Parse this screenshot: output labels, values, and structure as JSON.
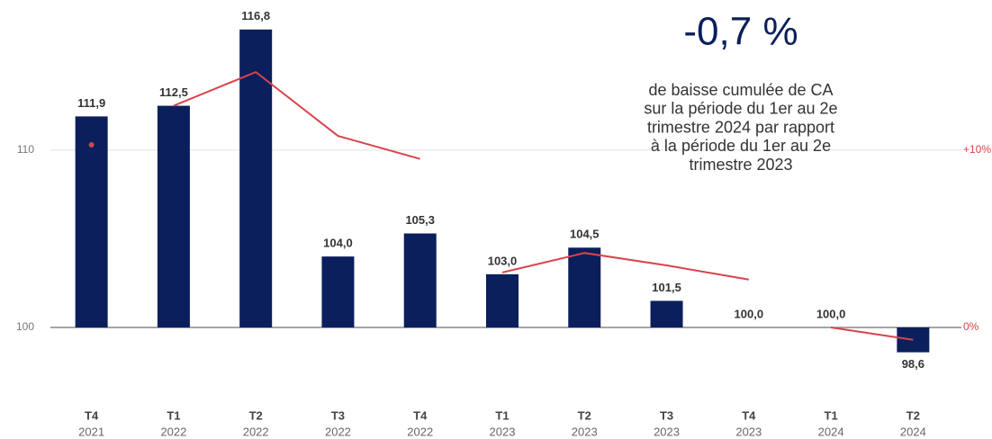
{
  "chart_data": {
    "type": "bar",
    "categories": [
      [
        "T4",
        "2021"
      ],
      [
        "T1",
        "2022"
      ],
      [
        "T2",
        "2022"
      ],
      [
        "T3",
        "2022"
      ],
      [
        "T4",
        "2022"
      ],
      [
        "T1",
        "2023"
      ],
      [
        "T2",
        "2023"
      ],
      [
        "T3",
        "2023"
      ],
      [
        "T4",
        "2023"
      ],
      [
        "T1",
        "2024"
      ],
      [
        "T2",
        "2024"
      ]
    ],
    "values": [
      111.9,
      112.5,
      116.8,
      104.0,
      105.3,
      103.0,
      104.5,
      101.5,
      100.0,
      100.0,
      98.6
    ],
    "value_labels": [
      "111,9",
      "112,5",
      "116,8",
      "104,0",
      "105,3",
      "103,0",
      "104,5",
      "101,5",
      "100,0",
      "100,0",
      "98,6"
    ],
    "color": "#0a1f5c",
    "baseline": 100,
    "ylim": [
      96.5,
      117.5
    ],
    "yticks": [
      100,
      110
    ],
    "y2lim": [
      -3.5,
      17.5
    ],
    "y2ticks": [
      {
        "value": 0,
        "label": "0%"
      },
      {
        "value": 10,
        "label": "+10%"
      }
    ],
    "grid": true,
    "series": [
      {
        "color": "#d9434b",
        "axis": "y2",
        "values": [
          10.3,
          null,
          null,
          null,
          null,
          null,
          null,
          null,
          null,
          null,
          null
        ]
      },
      {
        "color": "#d9434b",
        "axis": "y2",
        "values": [
          null,
          12.5,
          14.4,
          10.8,
          9.5,
          null,
          null,
          null,
          null,
          null,
          null
        ]
      },
      {
        "color": "#d9434b",
        "axis": "y2",
        "values": [
          null,
          null,
          null,
          null,
          null,
          3.1,
          4.2,
          3.5,
          2.7,
          null,
          null
        ]
      },
      {
        "color": "#d9434b",
        "axis": "y2",
        "values": [
          null,
          null,
          null,
          null,
          null,
          null,
          null,
          null,
          null,
          0,
          -0.7
        ]
      }
    ],
    "annotation": {
      "headline": "-0,7 %",
      "lines": [
        "de baisse cumulée de CA",
        "sur la période du 1er au 2e",
        "trimestre 2024 par rapport",
        "à la période du 1er au 2e",
        "trimestre 2023"
      ]
    }
  }
}
